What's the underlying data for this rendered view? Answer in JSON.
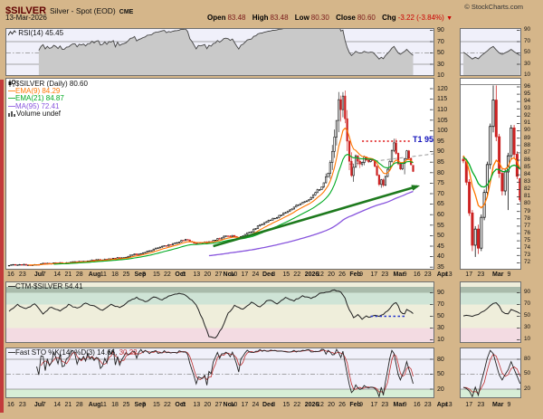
{
  "header": {
    "symbol": "$SILVER",
    "name": "Silver - Spot (EOD)",
    "exchange": "CME",
    "date": "13-Mar-2026",
    "credit": "© StockCharts.com",
    "quote": {
      "open_label": "Open",
      "open": "83.48",
      "high_label": "High",
      "high": "83.48",
      "low_label": "Low",
      "low": "80.30",
      "close_label": "Close",
      "close": "80.60",
      "chg_label": "Chg",
      "chg": "-3.22 (-3.84%)",
      "chg_arrow": "▼"
    }
  },
  "legends": {
    "rsi": "RSI(14) 45.45",
    "price_symbol": "$SILVER (Daily) 80.60",
    "ema9": "EMA(9) 84.29",
    "ema21": "EMA(21) 84.87",
    "ma95": "MA(95) 72.41",
    "volume": "Volume undef",
    "ctm": "CTM-$SILVER 54.41",
    "sto_main": "Fast STO %K(14) %D(3) 14.66,",
    "sto_d": "30.22"
  },
  "annotations": {
    "t1": "T1 95"
  },
  "colors": {
    "bg_tan": "#d5b68a",
    "panel_bg": "#ffffff",
    "indicator_bg": "#f0f0fa",
    "symbol_red": "#600000",
    "value_maroon": "#7a1a1a",
    "accent_red": "#cc0000",
    "up_candle": "#111111",
    "down_candle": "#cc2222",
    "ema9": "#ff7700",
    "ema21": "#00aa22",
    "ma95": "#8855dd",
    "rsi_line": "#444444",
    "rsi_fill": "#c9c9c9",
    "ctm_line": "#222222",
    "sto_k": "#222222",
    "sto_d": "#c03030",
    "t1_line": "#dd1111",
    "t1_text": "#1111bb",
    "trend_arrow": "#1e7a1e",
    "dashed_line": "#999999",
    "ctm_dotted": "#2233cc",
    "band_above90": "#a9bbab",
    "band_70_90": "#cfe4d6",
    "band_30_70": "#efeedb",
    "band_below30": "#f3dbe2",
    "sto_oversold": "#d7eed7"
  },
  "chart_data": {
    "type": "candlestick",
    "title": "$SILVER Silver - Spot (EOD) CME Daily",
    "x_axis_ticks": [
      [
        "16",
        0,
        0
      ],
      [
        "23",
        5.5,
        0
      ],
      [
        "Jul",
        12.7,
        1
      ],
      [
        "7",
        16.5,
        0
      ],
      [
        "14",
        21.8,
        0
      ],
      [
        "21",
        27,
        0
      ],
      [
        "28",
        32.3,
        0
      ],
      [
        "Aug",
        38.2,
        1
      ],
      [
        "11",
        43.7,
        0
      ],
      [
        "18",
        49,
        0
      ],
      [
        "25",
        54.3,
        0
      ],
      [
        "Sep",
        59.8,
        1
      ],
      [
        "8",
        63.4,
        0
      ],
      [
        "15",
        68.5,
        0
      ],
      [
        "22",
        73.6,
        0
      ],
      [
        "Oct",
        78.9,
        1
      ],
      [
        "6",
        82.1,
        0
      ],
      [
        "13",
        87.4,
        0
      ],
      [
        "20",
        92.5,
        0
      ],
      [
        "27",
        97.7,
        0
      ],
      [
        "Nov",
        101.5,
        1
      ],
      [
        "10",
        104.9,
        0
      ],
      [
        "17",
        110,
        0
      ],
      [
        "24",
        115.1,
        0
      ],
      [
        "Dec",
        120,
        1
      ],
      [
        "8",
        124.4,
        0
      ],
      [
        "15",
        129.5,
        0
      ],
      [
        "22",
        134.6,
        0
      ],
      [
        "2026",
        139.9,
        1
      ],
      [
        "12",
        145.6,
        0
      ],
      [
        "20",
        150.7,
        0
      ],
      [
        "26",
        155.8,
        0
      ],
      [
        "Feb",
        161,
        1
      ],
      [
        "9",
        165.6,
        0
      ],
      [
        "17",
        170.8,
        0
      ],
      [
        "23",
        175.9,
        0
      ],
      [
        "Mar",
        181.5,
        1
      ],
      [
        "9",
        186.2,
        0
      ],
      [
        "16",
        191,
        0
      ],
      [
        "23",
        196.1,
        0
      ],
      [
        "Apr",
        202,
        1
      ],
      [
        "13",
        205.9,
        0
      ]
    ],
    "x_axis_ticks_mini": [
      [
        "17",
        172,
        0
      ],
      [
        "23",
        176,
        0
      ],
      [
        "Mar",
        181,
        1
      ],
      [
        "9",
        186,
        0
      ]
    ],
    "price_panel": {
      "ylim": [
        35,
        120
      ],
      "yticks": [
        120,
        115,
        110,
        105,
        100,
        95,
        90,
        85,
        80,
        75,
        70,
        65,
        60,
        55,
        50,
        45,
        40,
        35
      ],
      "mini_ylim": [
        72,
        96
      ],
      "mini_start_index": 171,
      "yticks_mini": [
        96,
        95,
        94,
        93,
        92,
        91,
        90,
        89,
        88,
        87,
        86,
        85,
        84,
        83,
        82,
        81,
        80,
        79,
        78,
        77,
        76,
        75,
        74,
        73,
        72
      ],
      "close_anchors": [
        [
          0,
          36.0
        ],
        [
          5,
          36.2
        ],
        [
          10,
          36.1
        ],
        [
          15,
          36.5
        ],
        [
          20,
          36.8
        ],
        [
          25,
          37.0
        ],
        [
          30,
          37.3
        ],
        [
          35,
          37.8
        ],
        [
          40,
          38.3
        ],
        [
          45,
          38.6
        ],
        [
          50,
          39.0
        ],
        [
          55,
          40.0
        ],
        [
          60,
          41.2
        ],
        [
          65,
          42.6
        ],
        [
          70,
          44.2
        ],
        [
          75,
          45.5
        ],
        [
          78,
          46.6
        ],
        [
          83,
          48.2
        ],
        [
          88,
          46.2
        ],
        [
          93,
          46.8
        ],
        [
          97,
          48.0
        ],
        [
          100,
          49.2
        ],
        [
          104,
          50.0
        ],
        [
          108,
          48.6
        ],
        [
          112,
          51.0
        ],
        [
          116,
          53.5
        ],
        [
          120,
          56.5
        ],
        [
          124,
          58.0
        ],
        [
          128,
          60.0
        ],
        [
          132,
          62.5
        ],
        [
          136,
          64.5
        ],
        [
          140,
          67.0
        ],
        [
          144,
          70.0
        ],
        [
          148,
          75.0
        ],
        [
          150,
          80.0
        ],
        [
          152,
          90.0
        ],
        [
          153,
          97.0
        ],
        [
          154,
          105.0
        ],
        [
          155,
          114.0
        ],
        [
          156,
          110.0
        ],
        [
          157,
          116.0
        ],
        [
          158,
          105.0
        ],
        [
          159,
          95.0
        ],
        [
          160,
          85.0
        ],
        [
          161,
          78.5
        ],
        [
          162,
          83.0
        ],
        [
          163,
          88.0
        ],
        [
          164,
          86.0
        ],
        [
          165,
          84.0
        ],
        [
          166,
          85.5
        ],
        [
          167,
          87.0
        ],
        [
          168,
          86.0
        ],
        [
          169,
          85.0
        ],
        [
          170,
          86.0
        ],
        [
          171,
          85.8
        ]
      ],
      "tail_start_index": 172,
      "tail_ohlc": [
        [
          85.8,
          86.2,
          82.6,
          83.0
        ],
        [
          83.0,
          83.4,
          78.4,
          78.8
        ],
        [
          78.8,
          79.2,
          73.6,
          74.4
        ],
        [
          74.4,
          77.0,
          72.8,
          76.6
        ],
        [
          76.6,
          77.2,
          73.2,
          74.0
        ],
        [
          74.0,
          78.6,
          73.6,
          78.2
        ],
        [
          78.2,
          82.0,
          77.8,
          81.6
        ],
        [
          81.6,
          85.8,
          81.0,
          85.4
        ],
        [
          85.4,
          91.0,
          84.8,
          90.6
        ],
        [
          90.6,
          96.2,
          89.8,
          94.2
        ],
        [
          94.2,
          96.2,
          88.6,
          89.2
        ],
        [
          89.2,
          89.6,
          83.6,
          84.2
        ],
        [
          84.2,
          84.8,
          81.2,
          81.8
        ],
        [
          81.8,
          84.8,
          81.2,
          84.4
        ],
        [
          84.4,
          87.0,
          79.2,
          86.6
        ],
        [
          86.6,
          90.8,
          86.0,
          90.4
        ],
        [
          90.4,
          90.8,
          86.2,
          86.8
        ],
        [
          86.8,
          87.2,
          83.4,
          83.8
        ],
        [
          83.5,
          83.5,
          80.3,
          80.6
        ]
      ],
      "overlays": [
        {
          "name": "EMA(9)",
          "period": 9,
          "type": "ema",
          "color": "#ff7700"
        },
        {
          "name": "EMA(21)",
          "period": 21,
          "type": "ema",
          "color": "#00aa22"
        },
        {
          "name": "MA(95)",
          "period": 95,
          "type": "sma",
          "color": "#8855dd"
        }
      ],
      "t1_line": {
        "value": 95,
        "from": 166,
        "to": 189,
        "label": "T1 95"
      },
      "trend_arrow": {
        "from": [
          96,
          45
        ],
        "to": [
          192,
          73.5
        ]
      },
      "gray_dashed": {
        "from": [
          160,
          84
        ],
        "to": [
          200,
          89
        ]
      },
      "mini_top_line": 96.3
    },
    "rsi_panel": {
      "period": 14,
      "last": 45.45,
      "yticks": [
        90,
        70,
        50,
        30,
        10
      ],
      "hlines": [
        70,
        30
      ],
      "mid": 50
    },
    "ctm_panel": {
      "last": 54.41,
      "yticks": [
        90,
        70,
        50,
        30,
        10
      ],
      "bands": [
        [
          90,
          100,
          "band_above90"
        ],
        [
          70,
          90,
          "band_70_90"
        ],
        [
          30,
          70,
          "band_30_70"
        ],
        [
          0,
          30,
          "band_below30"
        ]
      ],
      "anchors": [
        [
          0,
          58
        ],
        [
          4,
          70
        ],
        [
          8,
          62
        ],
        [
          12,
          72
        ],
        [
          16,
          55
        ],
        [
          20,
          66
        ],
        [
          24,
          58
        ],
        [
          28,
          70
        ],
        [
          32,
          63
        ],
        [
          36,
          73
        ],
        [
          40,
          67
        ],
        [
          44,
          60
        ],
        [
          48,
          71
        ],
        [
          52,
          64
        ],
        [
          56,
          75
        ],
        [
          60,
          82
        ],
        [
          64,
          74
        ],
        [
          68,
          83
        ],
        [
          72,
          78
        ],
        [
          76,
          86
        ],
        [
          80,
          90
        ],
        [
          84,
          83
        ],
        [
          88,
          70
        ],
        [
          91,
          45
        ],
        [
          94,
          15
        ],
        [
          97,
          12
        ],
        [
          100,
          30
        ],
        [
          103,
          55
        ],
        [
          106,
          68
        ],
        [
          110,
          62
        ],
        [
          114,
          73
        ],
        [
          118,
          66
        ],
        [
          122,
          78
        ],
        [
          126,
          72
        ],
        [
          130,
          82
        ],
        [
          134,
          76
        ],
        [
          138,
          85
        ],
        [
          142,
          80
        ],
        [
          146,
          88
        ],
        [
          150,
          92
        ],
        [
          153,
          94
        ],
        [
          156,
          92
        ],
        [
          158,
          80
        ],
        [
          160,
          60
        ],
        [
          162,
          48
        ],
        [
          164,
          52
        ],
        [
          166,
          46
        ],
        [
          168,
          50
        ],
        [
          170,
          48
        ],
        [
          172,
          52
        ],
        [
          174,
          49
        ],
        [
          176,
          53
        ],
        [
          177,
          56
        ],
        [
          178,
          60
        ],
        [
          179,
          64
        ],
        [
          180,
          68
        ],
        [
          181,
          72
        ],
        [
          182,
          73
        ],
        [
          183,
          68
        ],
        [
          184,
          58
        ],
        [
          185,
          55
        ],
        [
          186,
          53
        ],
        [
          187,
          62
        ],
        [
          188,
          60
        ],
        [
          189,
          57
        ],
        [
          190,
          54.4
        ]
      ],
      "dotted": {
        "value": 50,
        "from": 170,
        "to": 187
      }
    },
    "sto_panel": {
      "k_period": 14,
      "d_period": 3,
      "k_last": 14.66,
      "d_last": 30.22,
      "yticks": [
        80,
        50,
        20
      ],
      "hlines": [
        80,
        20
      ],
      "mid": 50,
      "oversold_band": [
        0,
        20
      ]
    }
  }
}
